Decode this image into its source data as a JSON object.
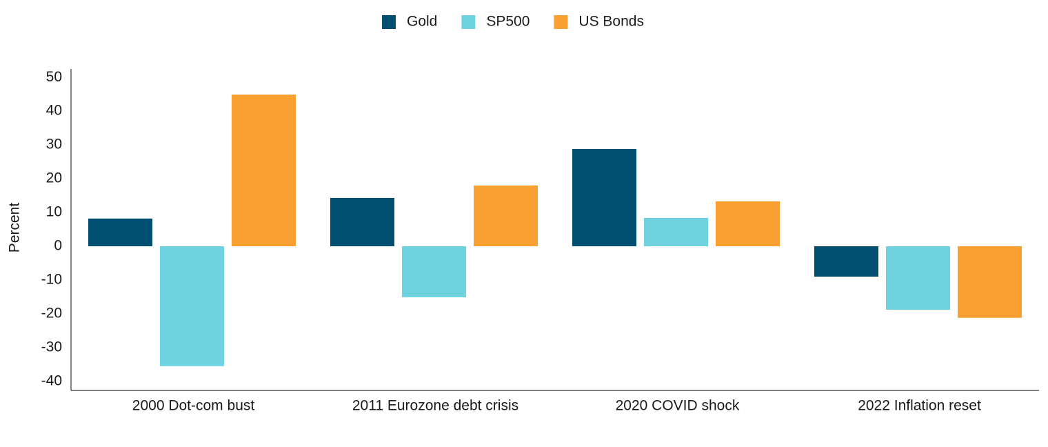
{
  "chart_data": {
    "type": "bar",
    "y_label": "Percent",
    "categories": [
      "2000 Dot-com bust",
      "2011 Eurozone debt crisis",
      "2020 COVID shock",
      "2022 Inflation reset"
    ],
    "series": [
      {
        "name": "Gold",
        "color": "#004f71",
        "values": [
          8.2,
          14.3,
          28.8,
          -9
        ]
      },
      {
        "name": "SP500",
        "color": "#6fd3df",
        "values": [
          -35.5,
          -15.1,
          8.4,
          -18.8
        ]
      },
      {
        "name": "US Bonds",
        "color": "#fa9f31",
        "values": [
          44.9,
          18,
          13.3,
          -21.2
        ]
      }
    ],
    "ylim": [
      -42.7,
      52.5
    ],
    "yticks": [
      -40,
      -30,
      -20,
      -10,
      0,
      10,
      20,
      30,
      40,
      50
    ],
    "grid": false,
    "legend": "top"
  }
}
